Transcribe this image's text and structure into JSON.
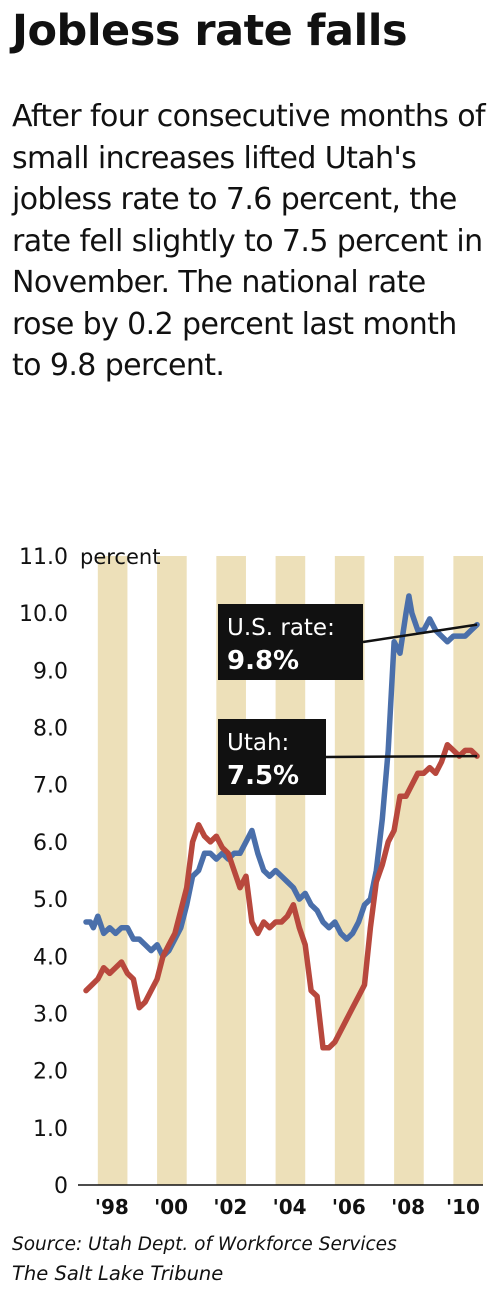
{
  "title": "Jobless rate falls",
  "subtitle": "After four consecutive months of small increases lifted Utah's jobless rate to 7.6 percent, the rate fell slightly to 7.5 percent in November. The national rate rose by 0.2 percent last month to 9.8 percent.",
  "source": "Source: Utah Dept. of Workforce Services",
  "credit": "The Salt Lake Tribune",
  "chart_data": {
    "type": "line",
    "unit_label": "percent",
    "ylim": [
      0,
      11
    ],
    "y_ticks": [
      "0",
      "1.0",
      "2.0",
      "3.0",
      "4.0",
      "5.0",
      "6.0",
      "7.0",
      "8.0",
      "9.0",
      "10.0",
      "11.0"
    ],
    "xlim": [
      1997.5,
      2011.0
    ],
    "x_tick_labels": [
      {
        "label": "'98",
        "x": 1998.0
      },
      {
        "label": "'00",
        "x": 2000.0
      },
      {
        "label": "'02",
        "x": 2002.0
      },
      {
        "label": "'04",
        "x": 2004.0
      },
      {
        "label": "'06",
        "x": 2006.0
      },
      {
        "label": "'08",
        "x": 2008.0
      },
      {
        "label": "'10",
        "x": 2010.0
      }
    ],
    "band_years": [
      1998,
      2000,
      2002,
      2004,
      2006,
      2008,
      2010
    ],
    "colors": {
      "us": "#4a6faa",
      "utah": "#b8483d",
      "band": "#ede0b9",
      "label_box": "#111111"
    },
    "series": [
      {
        "key": "us",
        "label_line1": "U.S. rate:",
        "label_line2": "9.8%",
        "x": [
          1997.6,
          1997.75,
          1997.85,
          1998.0,
          1998.2,
          1998.4,
          1998.6,
          1998.8,
          1999.0,
          1999.2,
          1999.4,
          1999.6,
          1999.8,
          2000.0,
          2000.2,
          2000.4,
          2000.6,
          2000.8,
          2001.0,
          2001.2,
          2001.4,
          2001.6,
          2001.8,
          2002.0,
          2002.2,
          2002.4,
          2002.6,
          2002.8,
          2003.0,
          2003.2,
          2003.4,
          2003.6,
          2003.8,
          2004.0,
          2004.2,
          2004.4,
          2004.6,
          2004.8,
          2005.0,
          2005.2,
          2005.4,
          2005.6,
          2005.8,
          2006.0,
          2006.2,
          2006.4,
          2006.6,
          2006.8,
          2007.0,
          2007.2,
          2007.4,
          2007.6,
          2007.8,
          2008.0,
          2008.2,
          2008.4,
          2008.5,
          2008.6,
          2008.8,
          2009.0,
          2009.2,
          2009.4,
          2009.6,
          2009.8,
          2010.0,
          2010.2,
          2010.4,
          2010.6,
          2010.8
        ],
        "values": [
          4.6,
          4.6,
          4.5,
          4.7,
          4.4,
          4.5,
          4.4,
          4.5,
          4.5,
          4.3,
          4.3,
          4.2,
          4.1,
          4.2,
          4.0,
          4.1,
          4.3,
          4.5,
          4.9,
          5.4,
          5.5,
          5.8,
          5.8,
          5.7,
          5.8,
          5.7,
          5.8,
          5.8,
          6.0,
          6.2,
          5.8,
          5.5,
          5.4,
          5.5,
          5.4,
          5.3,
          5.2,
          5.0,
          5.1,
          4.9,
          4.8,
          4.6,
          4.5,
          4.6,
          4.4,
          4.3,
          4.4,
          4.6,
          4.9,
          5.0,
          5.5,
          6.4,
          7.6,
          9.5,
          9.3,
          10.0,
          10.3,
          10.0,
          9.7,
          9.7,
          9.9,
          9.7,
          9.6,
          9.5,
          9.6,
          9.6,
          9.6,
          9.7,
          9.8
        ]
      },
      {
        "key": "utah",
        "label_line1": "Utah:",
        "label_line2": "7.5%",
        "x": [
          1997.6,
          1997.8,
          1998.0,
          1998.2,
          1998.4,
          1998.6,
          1998.8,
          1999.0,
          1999.2,
          1999.4,
          1999.6,
          1999.8,
          2000.0,
          2000.2,
          2000.4,
          2000.6,
          2000.8,
          2001.0,
          2001.2,
          2001.4,
          2001.6,
          2001.8,
          2002.0,
          2002.2,
          2002.4,
          2002.6,
          2002.8,
          2003.0,
          2003.2,
          2003.4,
          2003.6,
          2003.8,
          2004.0,
          2004.2,
          2004.4,
          2004.6,
          2004.8,
          2005.0,
          2005.2,
          2005.4,
          2005.6,
          2005.8,
          2006.0,
          2006.2,
          2006.4,
          2006.6,
          2006.8,
          2007.0,
          2007.2,
          2007.4,
          2007.6,
          2007.8,
          2008.0,
          2008.2,
          2008.4,
          2008.6,
          2008.8,
          2009.0,
          2009.2,
          2009.4,
          2009.6,
          2009.8,
          2010.0,
          2010.2,
          2010.4,
          2010.6,
          2010.8
        ],
        "values": [
          3.4,
          3.5,
          3.6,
          3.8,
          3.7,
          3.8,
          3.9,
          3.7,
          3.6,
          3.1,
          3.2,
          3.4,
          3.6,
          4.0,
          4.2,
          4.4,
          4.8,
          5.2,
          6.0,
          6.3,
          6.1,
          6.0,
          6.1,
          5.9,
          5.8,
          5.5,
          5.2,
          5.4,
          4.6,
          4.4,
          4.6,
          4.5,
          4.6,
          4.6,
          4.7,
          4.9,
          4.5,
          4.2,
          3.4,
          3.3,
          2.4,
          2.4,
          2.5,
          2.7,
          2.9,
          3.1,
          3.3,
          3.5,
          4.5,
          5.3,
          5.6,
          6.0,
          6.2,
          6.8,
          6.8,
          7.0,
          7.2,
          7.2,
          7.3,
          7.2,
          7.4,
          7.7,
          7.6,
          7.5,
          7.6,
          7.6,
          7.5
        ]
      }
    ]
  }
}
